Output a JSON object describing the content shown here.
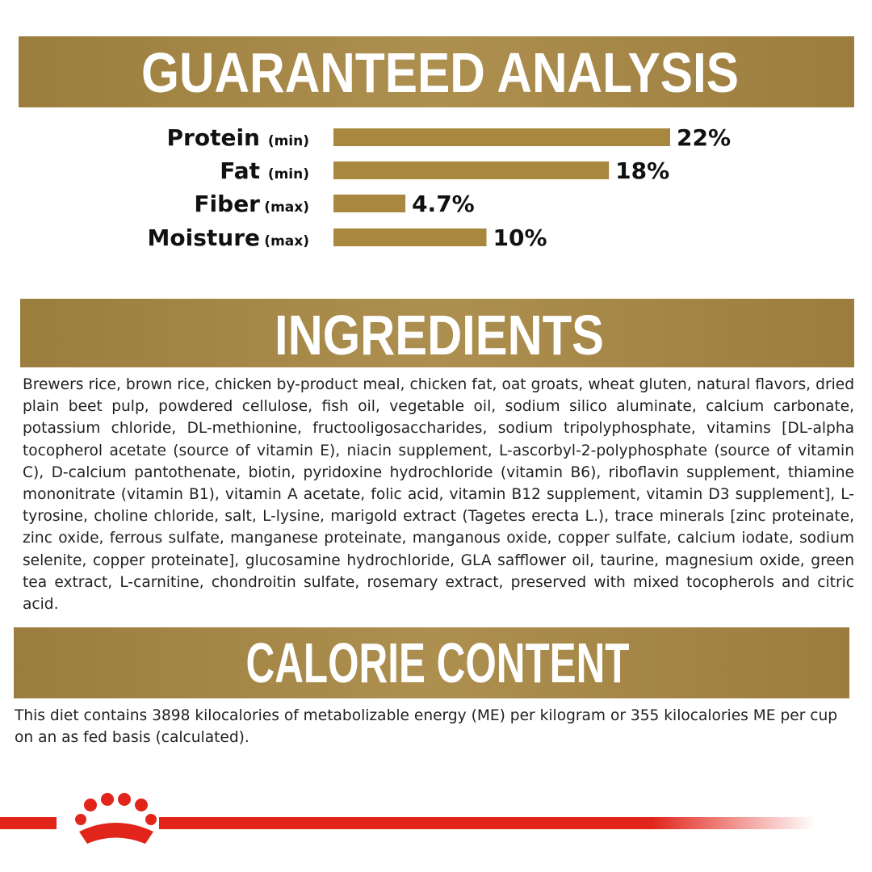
{
  "chart_data": {
    "type": "bar",
    "title": "GUARANTEED ANALYSIS",
    "categories": [
      "Protein",
      "Fat",
      "Fiber",
      "Moisture"
    ],
    "qualifiers": [
      "(min)",
      "(min)",
      "(max)",
      "(max)"
    ],
    "values": [
      22,
      18,
      4.7,
      10
    ],
    "value_labels": [
      "22%",
      "18%",
      "4.7%",
      "10%"
    ],
    "color": "#a8873f"
  },
  "ingredients": {
    "title": "INGREDIENTS",
    "text": "Brewers rice, brown rice, chicken by-product meal, chicken fat, oat groats, wheat gluten, natural flavors, dried plain beet pulp, powdered cellulose, fish oil, vegetable oil, sodium silico aluminate, calcium carbonate, potassium chloride, DL-methionine, fructooligosaccharides, sodium tripolyphosphate, vitamins [DL-alpha tocopherol acetate (source of vitamin E), niacin supplement, L-ascorbyl-2-polyphosphate (source of vitamin C), D-calcium pantothenate, biotin, pyridoxine hydrochloride (vitamin B6), riboflavin supplement, thiamine mononitrate (vitamin B1), vitamin A acetate, folic acid, vitamin B12 supplement, vitamin D3 supplement], L-tyrosine, choline chloride, salt, L-lysine, marigold extract (Tagetes erecta L.), trace minerals [zinc proteinate, zinc oxide, ferrous sulfate, manganese proteinate, manganous oxide, copper sulfate, calcium iodate, sodium selenite, copper proteinate], glucosamine hydrochloride, GLA safflower oil, taurine, magnesium oxide, green tea extract, L-carnitine, chondroitin sulfate, rosemary extract, preserved with mixed tocopherols and citric acid."
  },
  "calorie_content": {
    "title": "CALORIE CONTENT",
    "text": "This diet contains 3898 kilocalories of metabolizable energy (ME) per kilogram or 355 kilocalories ME per cup on an as fed basis (calculated)."
  }
}
